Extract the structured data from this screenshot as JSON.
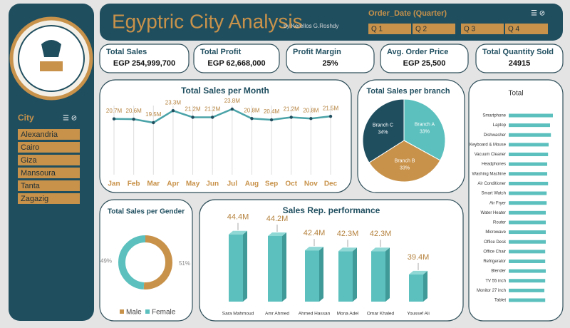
{
  "header": {
    "title": "Egyptric City Analysis",
    "author": "by Kerellos G.Roshdy",
    "slicer_title": "Order_Date (Quarter)",
    "quarters": [
      "Q 1",
      "Q 2",
      "Q 3",
      "Q 4"
    ]
  },
  "sidebar": {
    "slicer_title": "City",
    "cities": [
      "Alexandria",
      "Cairo",
      "Giza",
      "Mansoura",
      "Tanta",
      "Zagazig"
    ]
  },
  "kpis": [
    {
      "label": "Total Sales",
      "value": "EGP 254,999,700"
    },
    {
      "label": "Total Profit",
      "value": "EGP 62,668,000"
    },
    {
      "label": "Profit Margin",
      "value": "25%"
    },
    {
      "label": "Avg. Order Price",
      "value": "EGP 25,500"
    },
    {
      "label": "Total Quantity Sold",
      "value": "24915"
    }
  ],
  "chart_data": [
    {
      "type": "line",
      "title": "Total Sales per Month",
      "color": "#4aa3a8",
      "categories": [
        "Jan",
        "Feb",
        "Mar",
        "Apr",
        "May",
        "Jun",
        "Jul",
        "Aug",
        "Sep",
        "Oct",
        "Nov",
        "Dec"
      ],
      "values": [
        20.7,
        20.6,
        19.5,
        23.3,
        21.2,
        21.2,
        23.8,
        20.8,
        20.4,
        21.2,
        20.8,
        21.5
      ],
      "value_labels": [
        "20.7M",
        "20.6M",
        "19.5M",
        "23.3M",
        "21.2M",
        "21.2M",
        "23.8M",
        "20.8M",
        "20.4M",
        "21.2M",
        "20.8M",
        "21.5M"
      ]
    },
    {
      "type": "pie",
      "title": "Total Sales per branch",
      "categories": [
        "Branch A",
        "Branch B",
        "Branch C"
      ],
      "values": [
        33,
        33,
        34
      ],
      "value_labels": [
        "33%",
        "33%",
        "34%"
      ],
      "colors": [
        "#5bc0be",
        "#c8924a",
        "#1f4e5f"
      ]
    },
    {
      "type": "bar",
      "orientation": "horizontal",
      "title": "Total",
      "color": "#5bc0be",
      "categories": [
        "Smartphone",
        "Laptop",
        "Dishwasher",
        "Keyboard & Mouse",
        "Vacuum Cleaner",
        "Headphones",
        "Washing Machine",
        "Air Conditioner",
        "Smart Watch",
        "Air Fryer",
        "Water Heater",
        "Router",
        "Microwave",
        "Office Desk",
        "Office Chair",
        "Refrigerator",
        "Blender",
        "TV 55 inch",
        "Monitor 27 inch",
        "Tablet"
      ],
      "values": [
        15.5,
        14.5,
        14.8,
        14.0,
        13.8,
        13.5,
        13.5,
        13.8,
        13.3,
        13.3,
        13.0,
        13.0,
        13.0,
        13.0,
        12.8,
        12.8,
        13.0,
        12.8,
        12.5,
        12.8
      ]
    },
    {
      "type": "doughnut",
      "title": "Total Sales per Gender",
      "categories": [
        "Male",
        "Female"
      ],
      "values": [
        51,
        49
      ],
      "value_labels": [
        "51%",
        "49%"
      ],
      "colors": [
        "#c8924a",
        "#5bc0be"
      ]
    },
    {
      "type": "bar",
      "orientation": "vertical",
      "title": "Sales Rep. performance",
      "color": "#5bc0be",
      "categories": [
        "Sara Mahmoud",
        "Amr Ahmed",
        "Ahmed Hassan",
        "Mona Adel",
        "Omar Khaled",
        "Youssef Ali"
      ],
      "values": [
        44.4,
        44.2,
        42.4,
        42.3,
        42.3,
        39.4
      ],
      "value_labels": [
        "44.4M",
        "44.2M",
        "42.4M",
        "42.3M",
        "42.3M",
        "39.4M"
      ],
      "ylim": [
        36,
        45
      ]
    }
  ]
}
